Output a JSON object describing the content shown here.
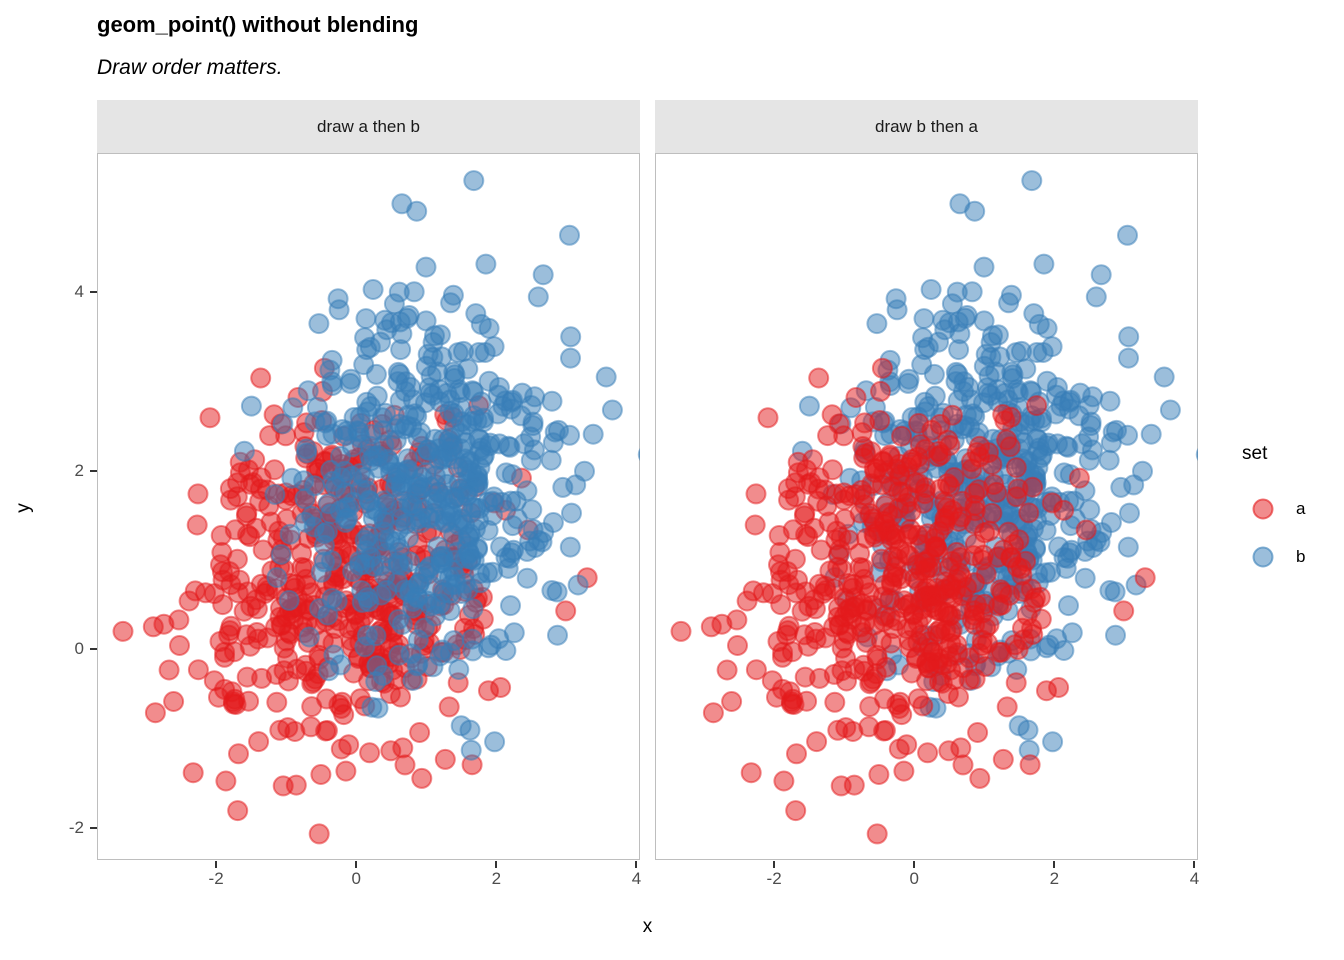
{
  "title": "geom_point() without blending",
  "subtitle": "Draw order matters.",
  "axes": {
    "x_label": "x",
    "y_label": "y",
    "x_tick_labels": [
      "-2",
      "0",
      "2",
      "4"
    ],
    "y_tick_labels": [
      "-2",
      "0",
      "2",
      "4"
    ]
  },
  "facets": [
    {
      "label": "draw a then b",
      "draw_order": [
        "a",
        "b"
      ]
    },
    {
      "label": "draw b then a",
      "draw_order": [
        "b",
        "a"
      ]
    }
  ],
  "legend": {
    "title": "set",
    "items": [
      {
        "label": "a",
        "color": "#E41A1C"
      },
      {
        "label": "b",
        "color": "#377EB8"
      }
    ]
  },
  "theme": {
    "strip_bg": "#E5E5E5",
    "panel_border": "#BEBEBE",
    "tick_color": "#333333",
    "tick_label_color": "#4D4D4D",
    "background": "#FFFFFF"
  },
  "chart_data": {
    "type": "scatter",
    "title": "geom_point() without blending",
    "subtitle": "Draw order matters.",
    "xlabel": "x",
    "ylabel": "y",
    "xlim": [
      -3.7,
      4.05
    ],
    "ylim": [
      -2.36,
      5.56
    ],
    "x_ticks": [
      -2,
      0,
      2,
      4
    ],
    "y_ticks": [
      -2,
      0,
      2,
      4
    ],
    "grid": false,
    "legend_position": "right",
    "facet_levels": [
      "draw a then b",
      "draw b then a"
    ],
    "same_data_in_both_facets": true,
    "point_alpha": 0.5,
    "point_radius_px": 9.5,
    "distribution": "bivariate_normal_clusters",
    "series": [
      {
        "name": "a",
        "color": "#E41A1C",
        "n": 500,
        "mean": [
          -0.1,
          0.85
        ],
        "sd": [
          1.05,
          1.0
        ],
        "seed": 101,
        "approx_range_x": [
          -3.5,
          3.0
        ],
        "approx_range_y": [
          -2.0,
          3.85
        ]
      },
      {
        "name": "b",
        "color": "#377EB8",
        "n": 500,
        "mean": [
          1.0,
          1.9
        ],
        "sd": [
          0.95,
          1.0
        ],
        "seed": 202,
        "approx_range_x": [
          -2.3,
          3.7
        ],
        "approx_range_y": [
          -1.15,
          5.2
        ]
      }
    ]
  }
}
